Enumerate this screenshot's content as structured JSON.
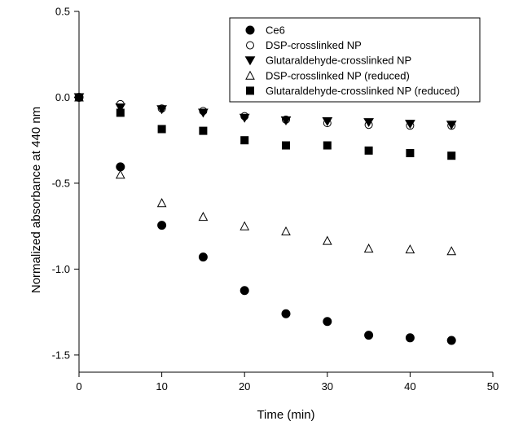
{
  "chart_data": {
    "type": "scatter",
    "xlabel": "Time (min)",
    "ylabel": "Normalized absorbance at 440 nm",
    "xlim": [
      0,
      50
    ],
    "ylim": [
      -1.6,
      0.5
    ],
    "x_ticks": [
      0,
      10,
      20,
      30,
      40,
      50
    ],
    "x_tick_labels": [
      "0",
      "10",
      "20",
      "30",
      "40",
      "50"
    ],
    "y_ticks": [
      0.5,
      0.0,
      -0.5,
      -1.0,
      -1.5
    ],
    "y_tick_labels": [
      "0.5",
      "0.0",
      "-0.5",
      "-1.0",
      "-1.5"
    ],
    "grid": false,
    "legend_position": "top-right",
    "series": [
      {
        "name": "Ce6",
        "marker": "circle-filled",
        "color": "#000000",
        "x": [
          0,
          5,
          10,
          15,
          20,
          25,
          30,
          35,
          40,
          45
        ],
        "y": [
          0.0,
          -0.405,
          -0.745,
          -0.93,
          -1.125,
          -1.26,
          -1.305,
          -1.385,
          -1.4,
          -1.415
        ]
      },
      {
        "name": "DSP-crosslinked NP",
        "marker": "circle-open",
        "color": "#000000",
        "x": [
          0,
          5,
          10,
          15,
          20,
          25,
          30,
          35,
          40,
          45
        ],
        "y": [
          0.0,
          -0.04,
          -0.065,
          -0.08,
          -0.11,
          -0.13,
          -0.15,
          -0.16,
          -0.165,
          -0.165
        ]
      },
      {
        "name": "Glutaraldehyde-crosslinked NP",
        "marker": "triangle-down-filled",
        "color": "#000000",
        "x": [
          0,
          5,
          10,
          15,
          20,
          25,
          30,
          35,
          40,
          45
        ],
        "y": [
          0.0,
          -0.06,
          -0.07,
          -0.09,
          -0.12,
          -0.135,
          -0.14,
          -0.145,
          -0.155,
          -0.16
        ]
      },
      {
        "name": "DSP-crosslinked NP (reduced)",
        "marker": "triangle-up-open",
        "color": "#000000",
        "x": [
          0,
          5,
          10,
          15,
          20,
          25,
          30,
          35,
          40,
          45
        ],
        "y": [
          0.0,
          -0.45,
          -0.615,
          -0.695,
          -0.75,
          -0.78,
          -0.835,
          -0.88,
          -0.885,
          -0.895
        ]
      },
      {
        "name": "Glutaraldehyde-crosslinked NP (reduced)",
        "marker": "square-filled",
        "color": "#000000",
        "x": [
          0,
          5,
          10,
          15,
          20,
          25,
          30,
          35,
          40,
          45
        ],
        "y": [
          0.0,
          -0.09,
          -0.185,
          -0.195,
          -0.25,
          -0.28,
          -0.28,
          -0.31,
          -0.325,
          -0.34
        ]
      }
    ]
  }
}
